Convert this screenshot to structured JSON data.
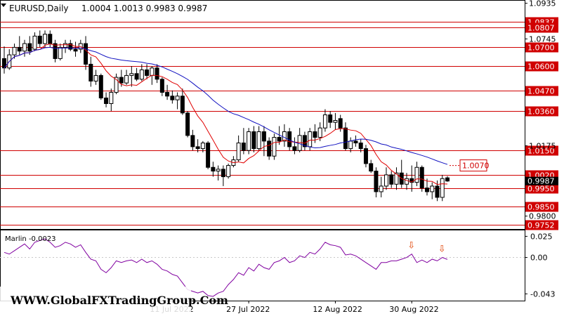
{
  "header": {
    "symbol_label": "EURUSD,Daily",
    "ohlc": "1.0004 1.0013 0.9983 0.9987"
  },
  "watermark": "WWW.GlobalFXTradingGroup.Com",
  "colors": {
    "background": "#ffffff",
    "level_line": "#d00000",
    "ma_fast": "#e00000",
    "ma_slow": "#1010c0",
    "oscillator": "#8000a0",
    "marker": "#e04000",
    "candle": "#000000"
  },
  "chart_data": [
    {
      "type": "candlestick",
      "title": "EURUSD,Daily",
      "y_axis_ticks": [
        "1.0935",
        "1.0745",
        "1.0175",
        "0.9800"
      ],
      "ylim": [
        0.9735,
        1.0945
      ],
      "x_tick_labels": [
        "11 Jul 2022",
        "27 Jul 2022",
        "12 Aug 2022",
        "30 Aug 2022"
      ],
      "price_levels": [
        {
          "label": "1.0837",
          "value": 1.0837
        },
        {
          "label": "1.0807",
          "value": 1.0807
        },
        {
          "label": "1.0700",
          "value": 1.07
        },
        {
          "label": "1.0600",
          "value": 1.06
        },
        {
          "label": "1.0470",
          "value": 1.047
        },
        {
          "label": "1.0360",
          "value": 1.036
        },
        {
          "label": "1.0150",
          "value": 1.015
        },
        {
          "label": "1.0020",
          "value": 1.002
        },
        {
          "label": "0.9950",
          "value": 0.995
        },
        {
          "label": "0.9850",
          "value": 0.985
        },
        {
          "label": "0.9752",
          "value": 0.9752
        }
      ],
      "current_price_label": "0.9987",
      "callout": {
        "label": "1.0070",
        "value": 1.007
      },
      "candles": [
        [
          1.064,
          1.0705,
          1.056,
          1.059
        ],
        [
          1.059,
          1.069,
          1.058,
          1.066
        ],
        [
          1.066,
          1.072,
          1.064,
          1.07
        ],
        [
          1.07,
          1.076,
          1.066,
          1.068
        ],
        [
          1.068,
          1.074,
          1.065,
          1.072
        ],
        [
          1.072,
          1.076,
          1.066,
          1.068
        ],
        [
          1.069,
          1.078,
          1.068,
          1.076
        ],
        [
          1.076,
          1.079,
          1.07,
          1.072
        ],
        [
          1.072,
          1.079,
          1.07,
          1.077
        ],
        [
          1.077,
          1.079,
          1.07,
          1.072
        ],
        [
          1.072,
          1.074,
          1.062,
          1.064
        ],
        [
          1.064,
          1.072,
          1.063,
          1.07
        ],
        [
          1.07,
          1.074,
          1.067,
          1.072
        ],
        [
          1.072,
          1.074,
          1.068,
          1.069
        ],
        [
          1.069,
          1.073,
          1.065,
          1.068
        ],
        [
          1.069,
          1.074,
          1.067,
          1.072
        ],
        [
          1.072,
          1.076,
          1.058,
          1.061
        ],
        [
          1.061,
          1.065,
          1.049,
          1.052
        ],
        [
          1.052,
          1.058,
          1.05,
          1.055
        ],
        [
          1.055,
          1.056,
          1.042,
          1.043
        ],
        [
          1.043,
          1.046,
          1.038,
          1.04
        ],
        [
          1.04,
          1.048,
          1.036,
          1.046
        ],
        [
          1.046,
          1.056,
          1.045,
          1.054
        ],
        [
          1.054,
          1.058,
          1.049,
          1.051
        ],
        [
          1.051,
          1.058,
          1.05,
          1.055
        ],
        [
          1.055,
          1.06,
          1.049,
          1.056
        ],
        [
          1.056,
          1.059,
          1.052,
          1.053
        ],
        [
          1.053,
          1.061,
          1.052,
          1.058
        ],
        [
          1.058,
          1.061,
          1.053,
          1.055
        ],
        [
          1.055,
          1.06,
          1.05,
          1.059
        ],
        [
          1.059,
          1.061,
          1.051,
          1.053
        ],
        [
          1.053,
          1.054,
          1.044,
          1.046
        ],
        [
          1.046,
          1.05,
          1.042,
          1.044
        ],
        [
          1.044,
          1.047,
          1.04,
          1.042
        ],
        [
          1.042,
          1.046,
          1.037,
          1.044
        ],
        [
          1.044,
          1.048,
          1.034,
          1.035
        ],
        [
          1.035,
          1.036,
          1.022,
          1.023
        ],
        [
          1.023,
          1.026,
          1.015,
          1.017
        ],
        [
          1.017,
          1.021,
          1.014,
          1.016
        ],
        [
          1.016,
          1.02,
          1.014,
          1.019
        ],
        [
          1.019,
          1.02,
          1.005,
          1.006
        ],
        [
          1.006,
          1.009,
          1.001,
          1.004
        ],
        [
          1.004,
          1.007,
          0.999,
          1.005
        ],
        [
          1.005,
          1.007,
          0.996,
          1.001
        ],
        [
          1.001,
          1.008,
          1.0,
          1.007
        ],
        [
          1.007,
          1.012,
          1.006,
          1.01
        ],
        [
          1.01,
          1.023,
          1.009,
          1.019
        ],
        [
          1.019,
          1.027,
          1.013,
          1.015
        ],
        [
          1.015,
          1.027,
          1.013,
          1.025
        ],
        [
          1.025,
          1.028,
          1.014,
          1.016
        ],
        [
          1.016,
          1.028,
          1.015,
          1.025
        ],
        [
          1.025,
          1.028,
          1.012,
          1.02
        ],
        [
          1.02,
          1.022,
          1.01,
          1.012
        ],
        [
          1.012,
          1.024,
          1.01,
          1.022
        ],
        [
          1.022,
          1.028,
          1.018,
          1.02
        ],
        [
          1.02,
          1.029,
          1.017,
          1.025
        ],
        [
          1.025,
          1.027,
          1.015,
          1.017
        ],
        [
          1.017,
          1.022,
          1.013,
          1.015
        ],
        [
          1.015,
          1.027,
          1.014,
          1.023
        ],
        [
          1.023,
          1.025,
          1.015,
          1.017
        ],
        [
          1.017,
          1.027,
          1.015,
          1.025
        ],
        [
          1.025,
          1.029,
          1.019,
          1.022
        ],
        [
          1.022,
          1.03,
          1.02,
          1.027
        ],
        [
          1.027,
          1.037,
          1.025,
          1.034
        ],
        [
          1.034,
          1.036,
          1.027,
          1.03
        ],
        [
          1.03,
          1.035,
          1.026,
          1.031
        ],
        [
          1.032,
          1.034,
          1.025,
          1.027
        ],
        [
          1.027,
          1.03,
          1.015,
          1.016
        ],
        [
          1.016,
          1.022,
          1.014,
          1.02
        ],
        [
          1.02,
          1.023,
          1.017,
          1.019
        ],
        [
          1.019,
          1.021,
          1.014,
          1.016
        ],
        [
          1.016,
          1.018,
          1.006,
          1.008
        ],
        [
          1.008,
          1.01,
          1.003,
          1.004
        ],
        [
          1.004,
          1.006,
          0.99,
          0.993
        ],
        [
          0.993,
          1.001,
          0.99,
          0.996
        ],
        [
          0.996,
          1.006,
          0.994,
          1.002
        ],
        [
          1.002,
          1.004,
          0.995,
          0.997
        ],
        [
          0.997,
          1.006,
          0.994,
          1.003
        ],
        [
          1.003,
          1.01,
          0.995,
          0.997
        ],
        [
          0.997,
          1.003,
          0.994,
          1.0
        ],
        [
          1.0,
          1.007,
          0.993,
          0.998
        ],
        [
          0.998,
          1.009,
          0.996,
          1.006
        ],
        [
          1.006,
          1.007,
          0.993,
          0.995
        ],
        [
          0.995,
          1.0,
          0.991,
          0.993
        ],
        [
          0.993,
          0.998,
          0.989,
          0.996
        ],
        [
          0.996,
          0.999,
          0.988,
          0.99
        ],
        [
          0.99,
          1.002,
          0.988,
          1.0
        ],
        [
          1.0004,
          1.0013,
          0.9983,
          0.9987
        ]
      ]
    },
    {
      "type": "line",
      "title": "Marlin -0.0023",
      "y_axis_ticks": [
        "0.025",
        "0.00",
        "-0.043"
      ],
      "ylim": [
        -0.051,
        0.032
      ],
      "values": [
        0.006,
        0.004,
        0.008,
        0.012,
        0.016,
        0.01,
        0.018,
        0.02,
        0.022,
        0.018,
        0.012,
        0.014,
        0.018,
        0.016,
        0.012,
        0.015,
        0.006,
        -0.002,
        -0.004,
        -0.014,
        -0.018,
        -0.012,
        -0.004,
        -0.006,
        -0.004,
        -0.003,
        -0.006,
        -0.002,
        -0.006,
        -0.004,
        -0.008,
        -0.014,
        -0.016,
        -0.02,
        -0.022,
        -0.03,
        -0.038,
        -0.04,
        -0.042,
        -0.04,
        -0.045,
        -0.046,
        -0.042,
        -0.04,
        -0.032,
        -0.026,
        -0.018,
        -0.021,
        -0.012,
        -0.016,
        -0.008,
        -0.012,
        -0.014,
        -0.006,
        -0.004,
        0.0,
        -0.006,
        -0.004,
        0.002,
        0.0,
        0.006,
        0.004,
        0.01,
        0.018,
        0.015,
        0.014,
        0.012,
        0.003,
        0.004,
        0.002,
        -0.002,
        -0.006,
        -0.01,
        -0.014,
        -0.006,
        -0.006,
        -0.004,
        -0.004,
        -0.002,
        0.0,
        0.004,
        -0.006,
        -0.003,
        -0.006,
        -0.002,
        -0.004,
        0.0,
        -0.0023
      ],
      "markers": [
        {
          "index": 80,
          "symbol": "⇩"
        },
        {
          "index": 86,
          "symbol": "⇩"
        }
      ]
    }
  ]
}
